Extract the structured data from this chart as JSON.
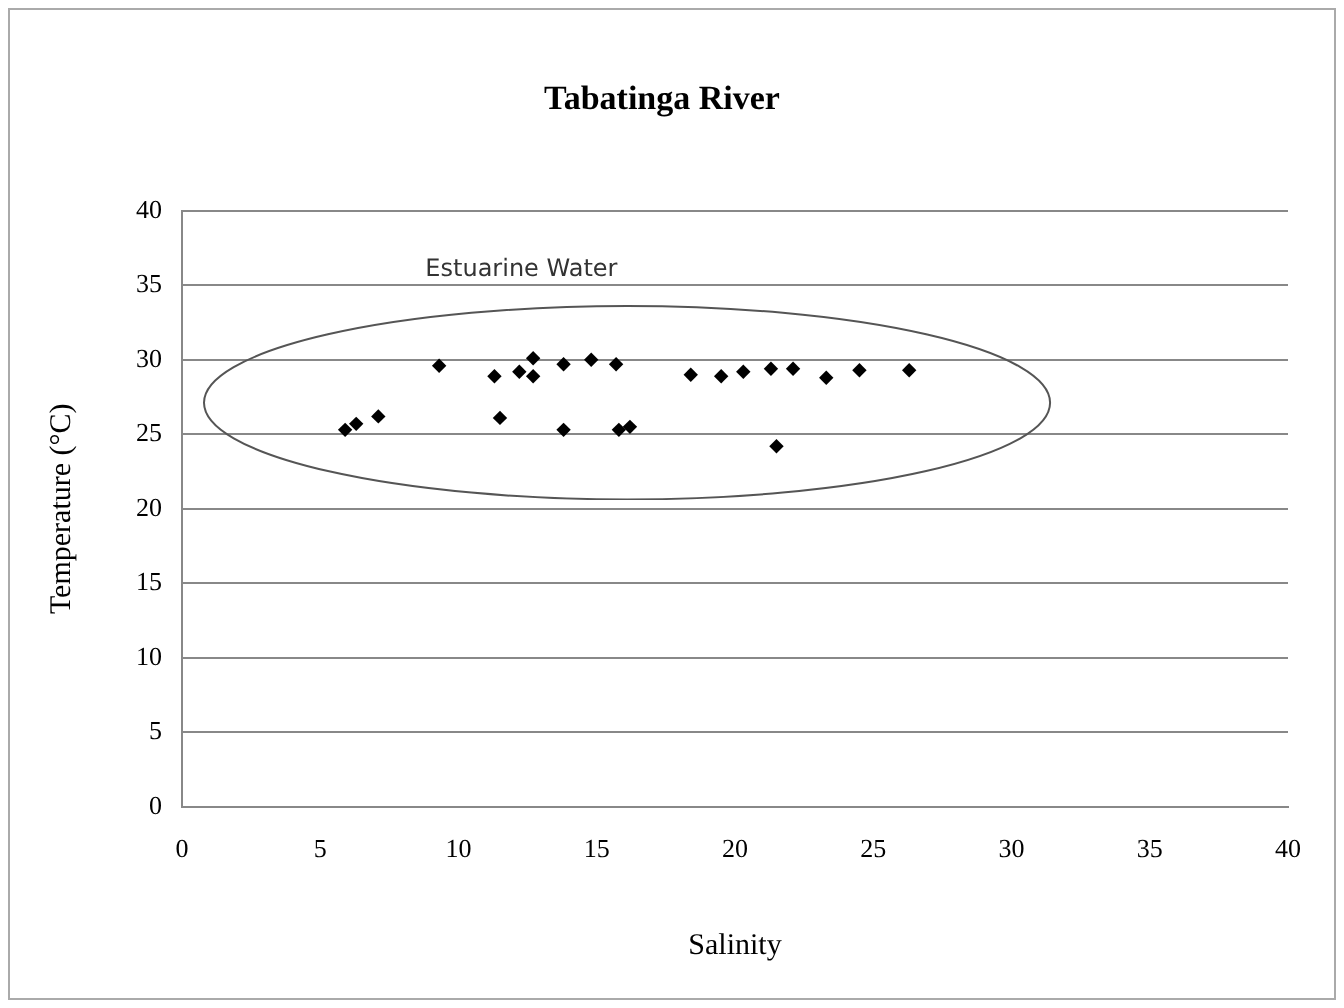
{
  "chart_data": {
    "type": "scatter",
    "title": "Tabatinga River",
    "xlabel": "Salinity",
    "ylabel": "Temperature (°C)",
    "annotations": [
      "Estuarine Water"
    ],
    "x": [
      5.9,
      6.3,
      7.1,
      9.3,
      11.3,
      11.5,
      12.2,
      12.7,
      12.7,
      13.8,
      13.8,
      14.8,
      15.7,
      15.8,
      16.2,
      18.4,
      19.5,
      20.3,
      21.3,
      21.5,
      22.1,
      23.3,
      24.5,
      26.3
    ],
    "series": [
      {
        "color": "#000000",
        "values": [
          25.3,
          25.7,
          26.2,
          29.6,
          28.9,
          26.1,
          29.2,
          30.1,
          28.9,
          29.7,
          25.3,
          30.0,
          29.7,
          25.3,
          25.5,
          29.0,
          28.9,
          29.2,
          29.4,
          24.2,
          29.4,
          28.8,
          29.3,
          29.3
        ]
      }
    ],
    "xlim": [
      0,
      40
    ],
    "xticks": [
      0,
      5,
      10,
      15,
      20,
      25,
      30,
      35,
      40
    ],
    "ylim": [
      0,
      40
    ],
    "yticks": [
      0,
      5,
      10,
      15,
      20,
      25,
      30,
      35,
      40
    ],
    "grid": "y",
    "legend": false,
    "marker": "diamond"
  }
}
